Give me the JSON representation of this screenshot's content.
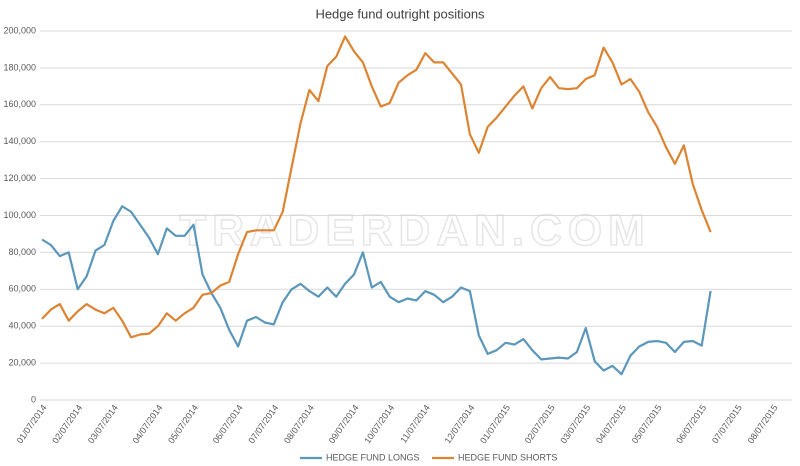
{
  "chart_data": {
    "type": "line",
    "title": "Hedge fund outright positions",
    "watermark": "TRADERDAN.COM",
    "categories": [
      "01/07/2014",
      null,
      null,
      null,
      "02/07/2014",
      null,
      null,
      null,
      "03/07/2014",
      null,
      null,
      null,
      null,
      "04/07/2014",
      null,
      null,
      null,
      "05/07/2014",
      null,
      null,
      null,
      null,
      "06/07/2014",
      null,
      null,
      null,
      "07/07/2014",
      null,
      null,
      null,
      "08/07/2014",
      null,
      null,
      null,
      null,
      "09/07/2014",
      null,
      null,
      null,
      "10/07/2014",
      null,
      null,
      null,
      "11/07/2014",
      null,
      null,
      null,
      null,
      "12/07/2014",
      null,
      null,
      null,
      "01/07/2015",
      null,
      null,
      null,
      null,
      "02/07/2015",
      null,
      null,
      null,
      "03/07/2015",
      null,
      null,
      null,
      "04/07/2015",
      null,
      null,
      null,
      "05/07/2015",
      null,
      null,
      null,
      null,
      "06/07/2015",
      null,
      null,
      null,
      "07/07/2015",
      null,
      null,
      null,
      "08/07/2015"
    ],
    "series": [
      {
        "name": "HEDGE FUND LONGS",
        "color": "#5b96bb",
        "values": [
          87000,
          84000,
          78000,
          80000,
          60000,
          67000,
          81000,
          84000,
          97000,
          105000,
          102000,
          95000,
          88000,
          79000,
          93000,
          89000,
          89000,
          95000,
          68000,
          58000,
          50000,
          38000,
          29000,
          43000,
          45000,
          42000,
          41000,
          53000,
          60000,
          63000,
          59000,
          56000,
          61000,
          56000,
          63000,
          68000,
          80000,
          61000,
          64000,
          56000,
          53000,
          55000,
          54000,
          59000,
          57000,
          53000,
          56000,
          61000,
          59000,
          35000,
          25000,
          27000,
          31000,
          30000,
          33000,
          27000,
          22000,
          22500,
          23000,
          22500,
          26000,
          39000,
          21000,
          16000,
          18500,
          14000,
          24000,
          29000,
          31500,
          32000,
          31000,
          26000,
          31500,
          32000,
          29500,
          59000,
          null,
          null,
          null,
          null,
          null,
          null,
          null
        ]
      },
      {
        "name": "HEDGE FUND SHORTS",
        "color": "#dd8433",
        "values": [
          44000,
          49000,
          52000,
          43000,
          48000,
          52000,
          49000,
          47000,
          50000,
          43000,
          34000,
          35500,
          36000,
          40000,
          47000,
          43000,
          47000,
          50000,
          57000,
          58000,
          62000,
          64000,
          79000,
          91000,
          92000,
          92000,
          92000,
          102000,
          126000,
          150000,
          168000,
          162000,
          181000,
          186000,
          197000,
          189000,
          183000,
          170000,
          159000,
          161000,
          172000,
          176000,
          179000,
          188000,
          183000,
          183000,
          177000,
          171000,
          144000,
          134000,
          148000,
          153000,
          159000,
          165000,
          170000,
          158000,
          169000,
          175000,
          169000,
          168500,
          169000,
          174000,
          176000,
          191000,
          183000,
          171000,
          174000,
          167000,
          156000,
          148000,
          137000,
          128000,
          138000,
          117000,
          103000,
          91000,
          null,
          null,
          null,
          null,
          null,
          null,
          null
        ]
      }
    ],
    "ylim": [
      0,
      200000
    ],
    "yticks": [
      0,
      {
        "value": 20000,
        "label": "20,000"
      },
      {
        "value": 40000,
        "label": "40,000"
      },
      {
        "value": 60000,
        "label": "60,000"
      },
      {
        "value": 80000,
        "label": "80,000"
      },
      {
        "value": 100000,
        "label": "100,000"
      },
      {
        "value": 120000,
        "label": "120,000"
      },
      {
        "value": 140000,
        "label": "140,000"
      },
      {
        "value": 160000,
        "label": "160,000"
      },
      {
        "value": 180000,
        "label": "180,000"
      },
      {
        "value": 200000,
        "label": "200,000"
      }
    ],
    "grid": true,
    "legend": "bottom"
  }
}
